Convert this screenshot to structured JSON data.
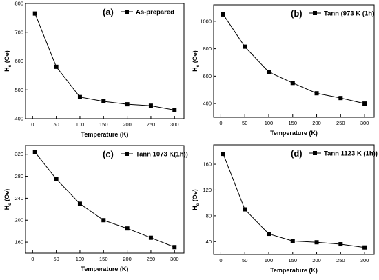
{
  "colors": {
    "line": "#000000",
    "marker": "#000000",
    "frame": "#000000",
    "background": "#ffffff"
  },
  "chart_data": [
    {
      "type": "line",
      "panel_label": "(a)",
      "legend": "As-prepared",
      "xlabel": "Temperature (K)",
      "ylabel": "H",
      "ylabel_sub": "c",
      "ylabel_unit": " (Oe)",
      "x": [
        5,
        50,
        100,
        150,
        200,
        250,
        300
      ],
      "values": [
        765,
        580,
        475,
        460,
        450,
        445,
        430
      ],
      "xlim": [
        -15,
        320
      ],
      "ylim": [
        400,
        800
      ],
      "xticks": [
        0,
        50,
        100,
        150,
        200,
        250,
        300
      ],
      "yticks": [
        400,
        500,
        600,
        700,
        800
      ],
      "grid": false
    },
    {
      "type": "line",
      "panel_label": "(b)",
      "legend": "Tann (973 K (1h)",
      "xlabel": "Temperature (K)",
      "ylabel": "H",
      "ylabel_sub": "c",
      "ylabel_unit": " (Oe)",
      "x": [
        5,
        50,
        100,
        150,
        200,
        250,
        300
      ],
      "values": [
        1050,
        815,
        630,
        550,
        475,
        440,
        400
      ],
      "xlim": [
        -15,
        320
      ],
      "ylim": [
        300,
        1120
      ],
      "xticks": [
        0,
        50,
        100,
        150,
        200,
        250,
        300
      ],
      "yticks": [
        400,
        600,
        800,
        1000
      ],
      "grid": false
    },
    {
      "type": "line",
      "panel_label": "(c)",
      "legend": "Tann 1073 K(1h))",
      "xlabel": "Temperature (K)",
      "ylabel": "H",
      "ylabel_sub": "c",
      "ylabel_unit": " (Oe)",
      "x": [
        5,
        50,
        100,
        150,
        200,
        250,
        300
      ],
      "values": [
        324,
        275,
        230,
        200,
        185,
        168,
        151
      ],
      "xlim": [
        -15,
        320
      ],
      "ylim": [
        140,
        336
      ],
      "xticks": [
        0,
        50,
        100,
        150,
        200,
        250,
        300
      ],
      "yticks": [
        160,
        200,
        240,
        280,
        320
      ],
      "grid": false
    },
    {
      "type": "line",
      "panel_label": "(d)",
      "legend": "Tann 1123 K (1h))",
      "xlabel": "Temperature (K)",
      "ylabel": "H",
      "ylabel_sub": "c",
      "ylabel_unit": " (Oe)",
      "x": [
        5,
        50,
        100,
        150,
        200,
        250,
        300
      ],
      "values": [
        176,
        90,
        52,
        41,
        39,
        36,
        31
      ],
      "xlim": [
        -15,
        320
      ],
      "ylim": [
        20,
        190
      ],
      "xticks": [
        0,
        50,
        100,
        150,
        200,
        250,
        300
      ],
      "yticks": [
        40,
        80,
        120,
        160
      ],
      "grid": false
    }
  ]
}
